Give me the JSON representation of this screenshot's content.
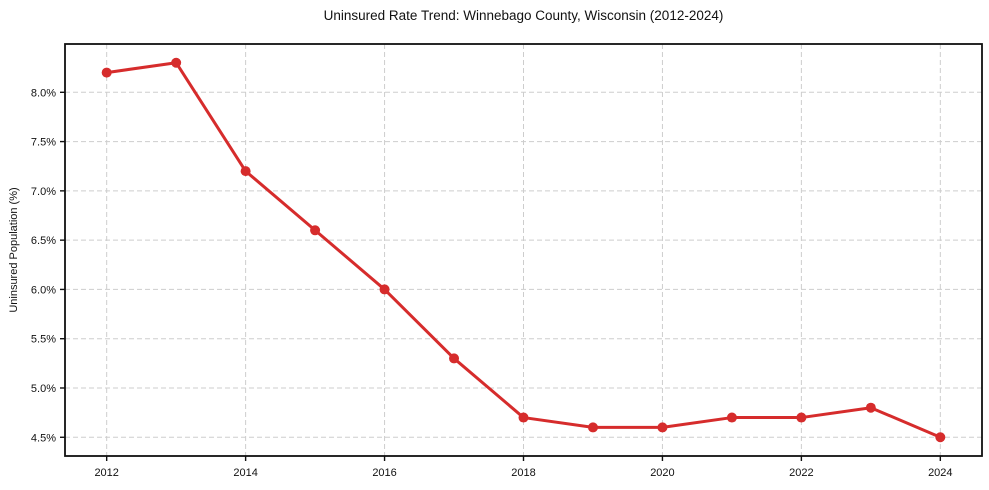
{
  "chart_data": {
    "type": "line",
    "title": "Uninsured Rate Trend: Winnebago County, Wisconsin (2012-2024)",
    "xlabel": "",
    "ylabel": "Uninsured Population (%)",
    "x": [
      2012,
      2013,
      2014,
      2015,
      2016,
      2017,
      2018,
      2019,
      2020,
      2021,
      2022,
      2023,
      2024
    ],
    "series": [
      {
        "name": "Uninsured rate",
        "values": [
          8.2,
          8.3,
          7.2,
          6.6,
          6.0,
          5.3,
          4.7,
          4.6,
          4.6,
          4.7,
          4.7,
          4.8,
          4.5
        ],
        "color": "#d62c2c",
        "marker": "circle"
      }
    ],
    "xticks": [
      2012,
      2014,
      2016,
      2018,
      2020,
      2022,
      2024
    ],
    "yticks": [
      4.5,
      5.0,
      5.5,
      6.0,
      6.5,
      7.0,
      7.5,
      8.0
    ],
    "ytick_suffix": "%",
    "xlim": [
      2011.4,
      2024.6
    ],
    "ylim": [
      4.31,
      8.49
    ],
    "grid": true,
    "grid_style": "dashed",
    "legend": "none",
    "colors": {
      "line": "#d62c2c",
      "grid": "#cdcdcd",
      "axis": "#111111",
      "text": "#111111",
      "background": "#ffffff"
    }
  }
}
